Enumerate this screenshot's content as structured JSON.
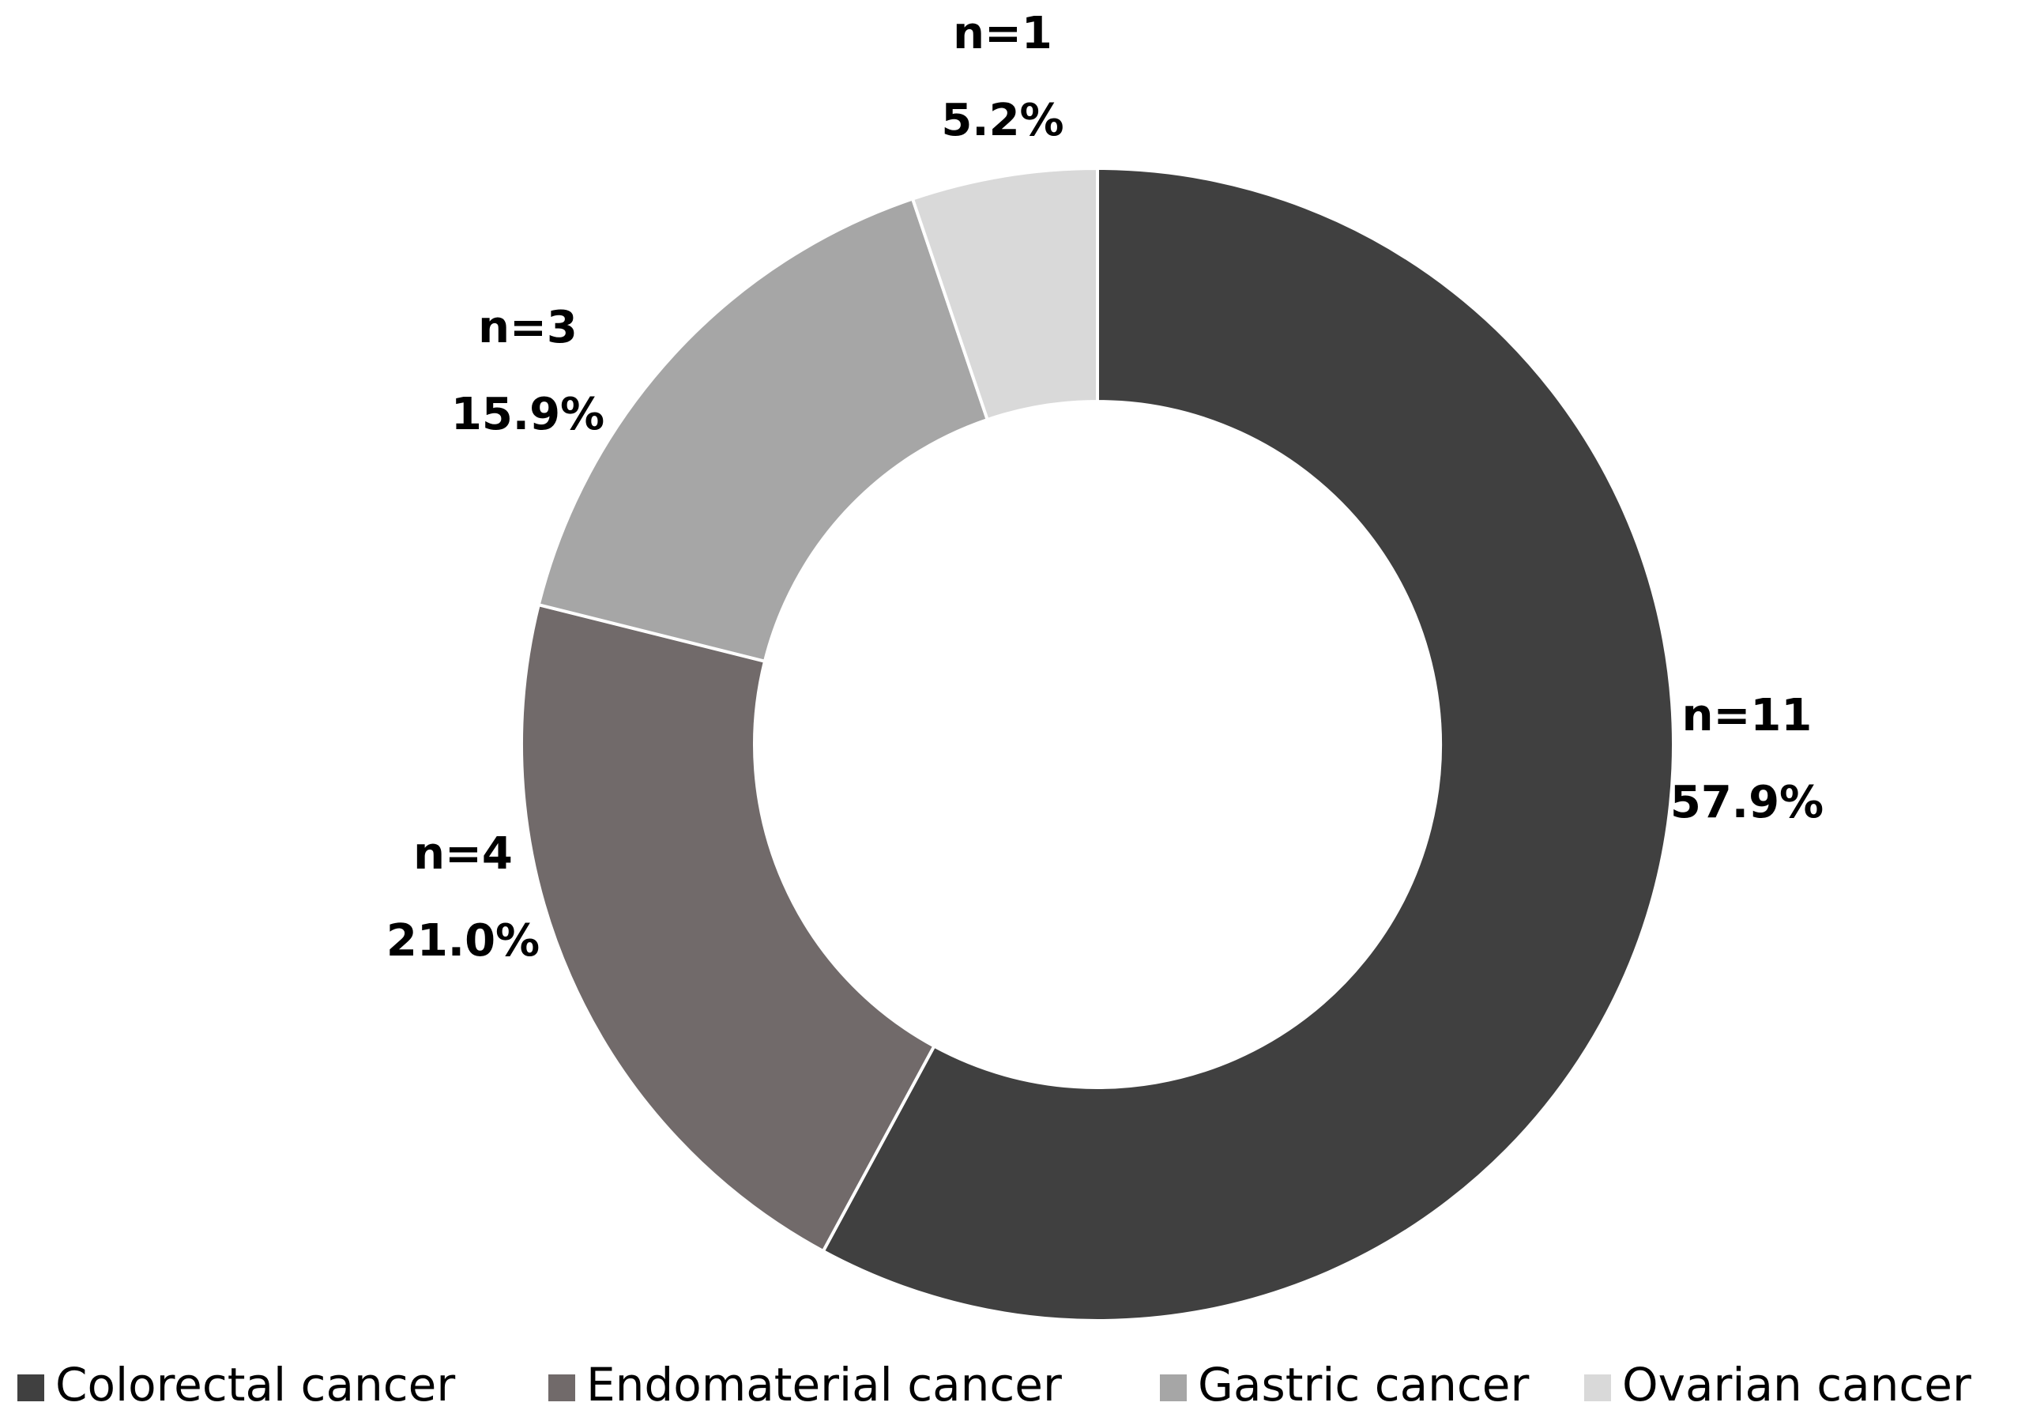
{
  "chart_data": {
    "type": "donut",
    "categories": [
      "Colorectal cancer",
      "Endomaterial cancer",
      "Gastric cancer",
      "Ovarian cancer"
    ],
    "values": [
      57.9,
      21.0,
      15.9,
      5.2
    ],
    "value_labels": [
      "57.9%",
      "21.0%",
      "15.9%",
      "5.2%"
    ],
    "counts": [
      11,
      4,
      3,
      1
    ],
    "count_labels": [
      "n=11",
      "n=4",
      "n=3",
      "n=1"
    ],
    "colors": [
      "#404040",
      "#716a6a",
      "#a6a6a6",
      "#d9d9d9"
    ],
    "legend": "bottom"
  }
}
